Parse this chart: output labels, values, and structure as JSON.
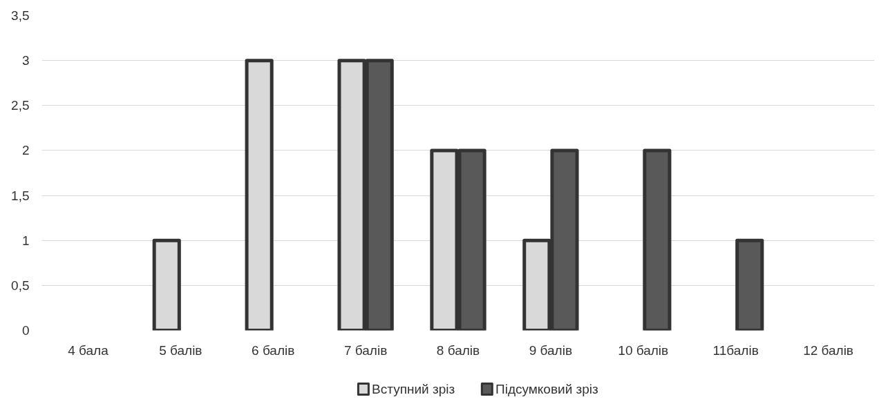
{
  "chart_data": {
    "type": "bar",
    "categories": [
      "4 бала",
      "5 балів",
      "6 балів",
      "7 балів",
      "8 балів",
      "9 балів",
      "10 балів",
      "11балів",
      "12 балів"
    ],
    "series": [
      {
        "name": "Вступний зріз",
        "color": "#d9d9d9",
        "values": [
          0,
          1,
          3,
          3,
          2,
          1,
          0,
          0,
          0
        ]
      },
      {
        "name": "Підсумковий зріз",
        "color": "#595959",
        "values": [
          0,
          0,
          0,
          3,
          2,
          2,
          2,
          1,
          0
        ]
      }
    ],
    "ylim": [
      0,
      3.5
    ],
    "yticks": [
      0,
      {
        "value": 0.5,
        "label": "0,5"
      },
      1,
      {
        "value": 1.5,
        "label": "1,5"
      },
      2,
      {
        "value": 2.5,
        "label": "2,5"
      },
      3,
      {
        "value": 3.5,
        "label": "3,5"
      }
    ],
    "grid": "y",
    "legend": "bottom"
  }
}
